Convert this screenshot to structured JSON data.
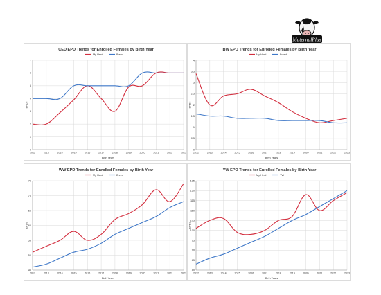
{
  "logo": {
    "text": "MaternalPlus"
  },
  "colors": {
    "herd": "#d32f3f",
    "breed": "#3f78c8",
    "grid": "#d9d9d9",
    "axis": "#9a9a9a",
    "text": "#333333"
  },
  "chart_data": [
    {
      "type": "line",
      "title": "CED EPD Trends for Enrolled Females by Birth Year",
      "xlabel": "Birth Years",
      "ylabel": "EPDs",
      "x": [
        "2012",
        "2013",
        "2014",
        "2015",
        "2016",
        "2017",
        "2018",
        "2019",
        "2020",
        "2021",
        "2022",
        "2023"
      ],
      "ylim": [
        0,
        7
      ],
      "yticks": [
        "0",
        "1",
        "2",
        "3",
        "4",
        "5",
        "6",
        "7"
      ],
      "legend": "top-center",
      "grid": true,
      "series": [
        {
          "name": "My Herd",
          "values": [
            2.0,
            2.0,
            2.9,
            3.9,
            5.0,
            4.0,
            3.0,
            4.9,
            5.0,
            6.0,
            6.0,
            6.0
          ]
        },
        {
          "name": "Breed",
          "values": [
            4.0,
            4.0,
            4.0,
            5.0,
            5.0,
            5.0,
            5.0,
            5.0,
            6.0,
            6.0,
            6.0,
            6.0
          ]
        }
      ]
    },
    {
      "type": "line",
      "title": "BW EPD Trends for Enrolled Females by Birth Year",
      "xlabel": "Birth Years",
      "ylabel": "EPDs",
      "x": [
        "2012",
        "2013",
        "2014",
        "2015",
        "2016",
        "2017",
        "2018",
        "2019",
        "2020",
        "2021",
        "2022",
        "2023"
      ],
      "ylim": [
        0,
        4
      ],
      "yticks": [
        "0",
        "0.5",
        "1",
        "1.5",
        "2",
        "2.5",
        "3",
        "3.5",
        "4"
      ],
      "legend": "top-center",
      "grid": true,
      "series": [
        {
          "name": "My Herd",
          "values": [
            3.4,
            2.0,
            2.4,
            2.5,
            2.7,
            2.4,
            2.1,
            1.7,
            1.4,
            1.2,
            1.3,
            1.4
          ]
        },
        {
          "name": "Breed",
          "values": [
            1.6,
            1.5,
            1.5,
            1.4,
            1.4,
            1.4,
            1.3,
            1.3,
            1.3,
            1.3,
            1.2,
            1.2
          ]
        }
      ]
    },
    {
      "type": "line",
      "title": "WW EPD Trends for Enrolled Females by Birth Year",
      "xlabel": "Birth Years",
      "ylabel": "EPDs",
      "x": [
        "2012",
        "2013",
        "2014",
        "2015",
        "2016",
        "2017",
        "2018",
        "2019",
        "2020",
        "2021",
        "2022",
        "2023"
      ],
      "ylim": [
        45,
        75
      ],
      "yticks": [
        "45",
        "50",
        "55",
        "60",
        "65",
        "70",
        "75"
      ],
      "legend": "top-center",
      "grid": true,
      "series": [
        {
          "name": "My Herd",
          "values": [
            51.0,
            53.0,
            55.0,
            58.0,
            55.0,
            57.0,
            62.0,
            64.0,
            67.0,
            72.0,
            68.0,
            74.0
          ]
        },
        {
          "name": "Breed",
          "values": [
            46.0,
            47.0,
            49.0,
            51.0,
            52.0,
            54.0,
            57.0,
            59.0,
            61.0,
            63.0,
            66.0,
            68.0
          ]
        }
      ]
    },
    {
      "type": "line",
      "title": "YW EPD Trends for Enrolled Females by Birth Year",
      "xlabel": "Birth Years",
      "ylabel": "EPDs",
      "x": [
        "2012",
        "2013",
        "2014",
        "2015",
        "2016",
        "2017",
        "2018",
        "2019",
        "2020",
        "2021",
        "2022",
        "2023"
      ],
      "ylim": [
        80,
        125
      ],
      "yticks": [
        "80",
        "85",
        "90",
        "95",
        "100",
        "105",
        "110",
        "115",
        "120",
        "125"
      ],
      "legend": "top-center",
      "grid": true,
      "series": [
        {
          "name": "My Herd",
          "values": [
            101.0,
            105.0,
            106.0,
            99.0,
            98.0,
            100.0,
            105.0,
            107.0,
            118.0,
            110.0,
            115.0,
            119.0
          ]
        },
        {
          "name": "YW",
          "values": [
            83.0,
            86.0,
            88.0,
            91.0,
            94.0,
            97.0,
            101.0,
            105.0,
            108.0,
            112.0,
            116.0,
            120.0
          ]
        }
      ]
    }
  ]
}
